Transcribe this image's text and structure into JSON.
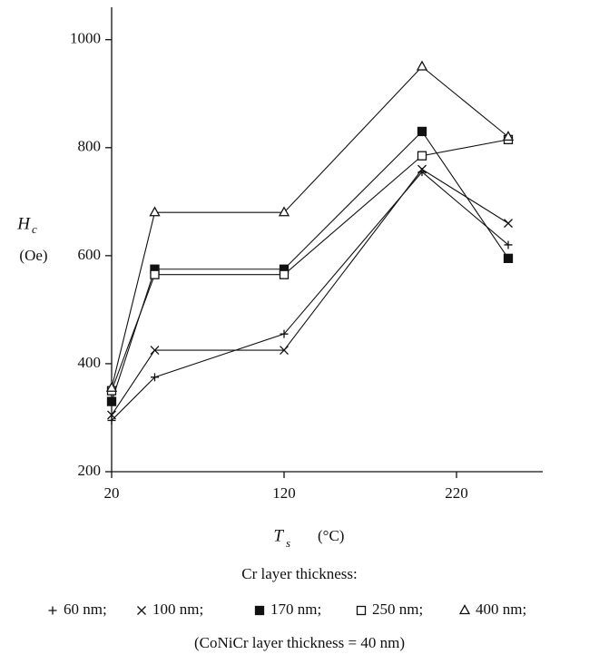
{
  "chart_data": {
    "type": "line",
    "y_label": "H",
    "y_label_sub": "c",
    "y_unit": "(Oe)",
    "x_label": "T",
    "x_label_sub": "s",
    "x_unit": "(°C)",
    "legend_title": "Cr layer thickness:",
    "note": "(CoNiCr layer thickness = 40 nm)",
    "x": [
      20,
      45,
      120,
      200,
      250
    ],
    "xlim": [
      20,
      270
    ],
    "xticks": [
      20,
      120,
      220
    ],
    "ylim": [
      200,
      1060
    ],
    "yticks": [
      200,
      400,
      600,
      800,
      1000
    ],
    "series": [
      {
        "name": "60 nm;",
        "marker": "plus",
        "color": "#111111",
        "values": [
          295,
          375,
          455,
          755,
          620
        ]
      },
      {
        "name": "100 nm;",
        "marker": "cross",
        "color": "#111111",
        "values": [
          305,
          425,
          425,
          760,
          660
        ]
      },
      {
        "name": "170 nm;",
        "marker": "filled-square",
        "color": "#111111",
        "values": [
          330,
          575,
          575,
          830,
          595
        ]
      },
      {
        "name": "250 nm;",
        "marker": "open-square",
        "color": "#111111",
        "values": [
          350,
          565,
          565,
          785,
          815
        ]
      },
      {
        "name": "400 nm;",
        "marker": "triangle",
        "color": "#111111",
        "values": [
          355,
          680,
          680,
          950,
          820
        ]
      }
    ]
  }
}
